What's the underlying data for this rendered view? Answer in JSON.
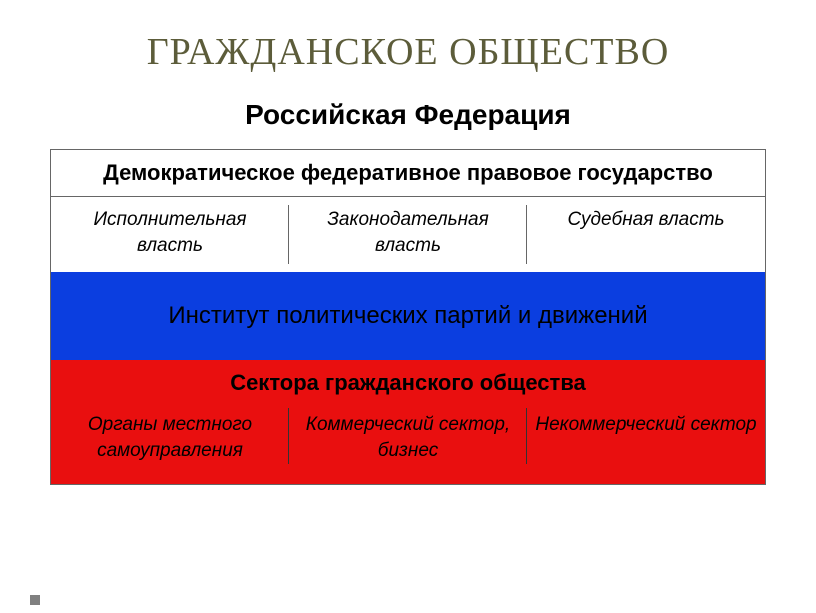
{
  "title": "ГРАЖДАНСКОЕ ОБЩЕСТВО",
  "subtitle": "Российская Федерация",
  "colors": {
    "background": "#ffffff",
    "title_color": "#5c5c3a",
    "text_color": "#000000",
    "border_color": "#666666",
    "white_band": "#ffffff",
    "blue_band": "#0b3ee0",
    "red_band": "#e90f0f",
    "bullet": "#808080"
  },
  "typography": {
    "title_fontsize": 38,
    "subtitle_fontsize": 28,
    "header_fontsize": 22,
    "cell_fontsize": 19,
    "blue_fontsize": 24,
    "title_family": "Times New Roman",
    "body_family": "Arial"
  },
  "white_section": {
    "header": "Демократическое федеративное правовое государство",
    "columns": [
      "Исполнительная власть",
      "Законодательная власть",
      "Судебная власть"
    ]
  },
  "blue_section": {
    "text": "Институт политических партий и движений"
  },
  "red_section": {
    "header": "Сектора гражданского общества",
    "columns": [
      "Органы местного самоуправления",
      "Коммерческий сектор, бизнес",
      "Некоммерческий сектор"
    ]
  }
}
